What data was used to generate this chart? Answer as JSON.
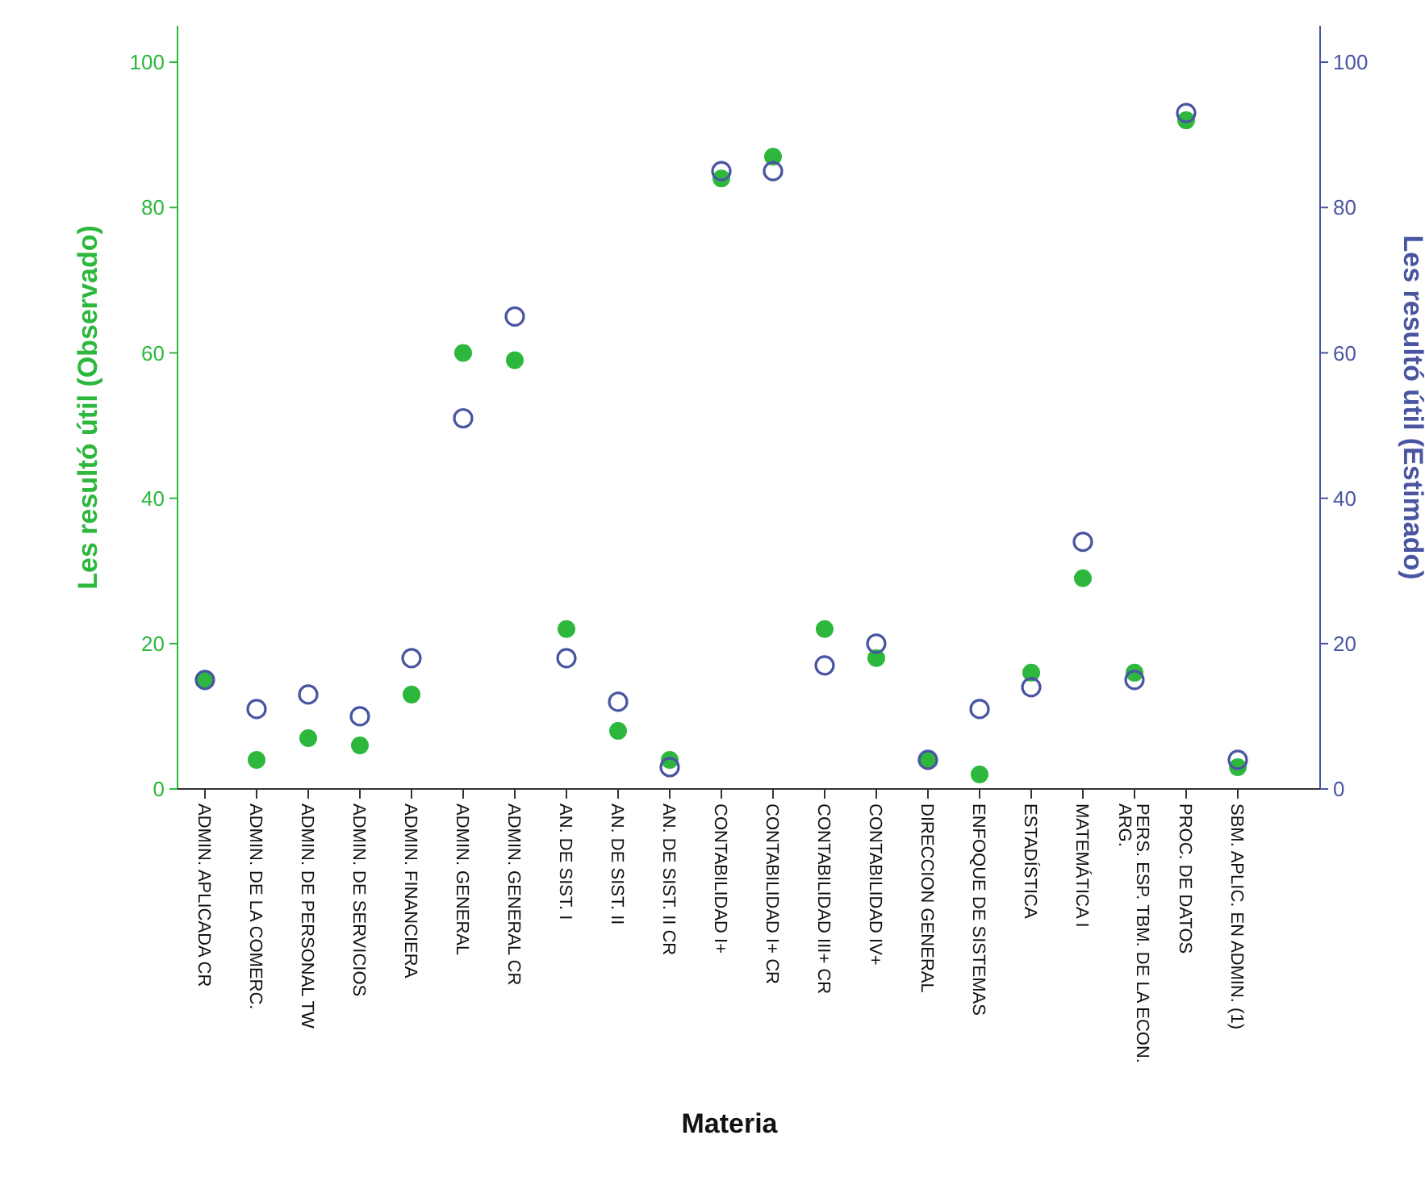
{
  "chart_data": {
    "type": "scatter",
    "xlabel": "Materia",
    "ylabel": "Les resultó útil (Observado)",
    "y2label": "Les resultó útil (Estimado)",
    "categories": [
      "ADMIN. APLICADA CR",
      "ADMIN. DE LA COMERC.",
      "ADMIN. DE PERSONAL TW",
      "ADMIN. DE SERVICIOS",
      "ADMIN. FINANCIERA",
      "ADMIN. GENERAL",
      "ADMIN. GENERAL CR",
      "AN. DE SIST. I",
      "AN. DE SIST. II",
      "AN. DE SIST. II CR",
      "CONTABILIDAD I+",
      "CONTABILIDAD I+ CR",
      "CONTABILIDAD III+ CR",
      "CONTABILIDAD IV+",
      "DIRECCION GENERAL",
      "ENFOQUE DE SISTEMAS",
      "ESTADÍSTICA",
      "MATEMÁTICA I",
      "PERS. ESP. TBM. DE LA ECON. ARG.",
      "PROC. DE DATOS",
      "SBM. APLIC. EN ADMIN. (1)"
    ],
    "series": [
      {
        "color": "#2db83d",
        "values": [
          15,
          4,
          7,
          6,
          13,
          60,
          59,
          22,
          8,
          4,
          84,
          87,
          22,
          18,
          4,
          2,
          16,
          29,
          16,
          92,
          3
        ]
      },
      {
        "color": "#4a55a2",
        "axis": "y2",
        "values": [
          15,
          11,
          13,
          10,
          18,
          51,
          65,
          18,
          12,
          3,
          85,
          85,
          17,
          20,
          4,
          11,
          14,
          34,
          15,
          93,
          4
        ]
      }
    ],
    "ylim": [
      0,
      105
    ],
    "yticks": [
      0,
      20,
      40,
      60,
      80,
      100
    ],
    "y2lim": [
      0,
      105
    ],
    "y2ticks": [
      0,
      20,
      40,
      60,
      80,
      100
    ],
    "marker": "circle",
    "grid": false
  }
}
